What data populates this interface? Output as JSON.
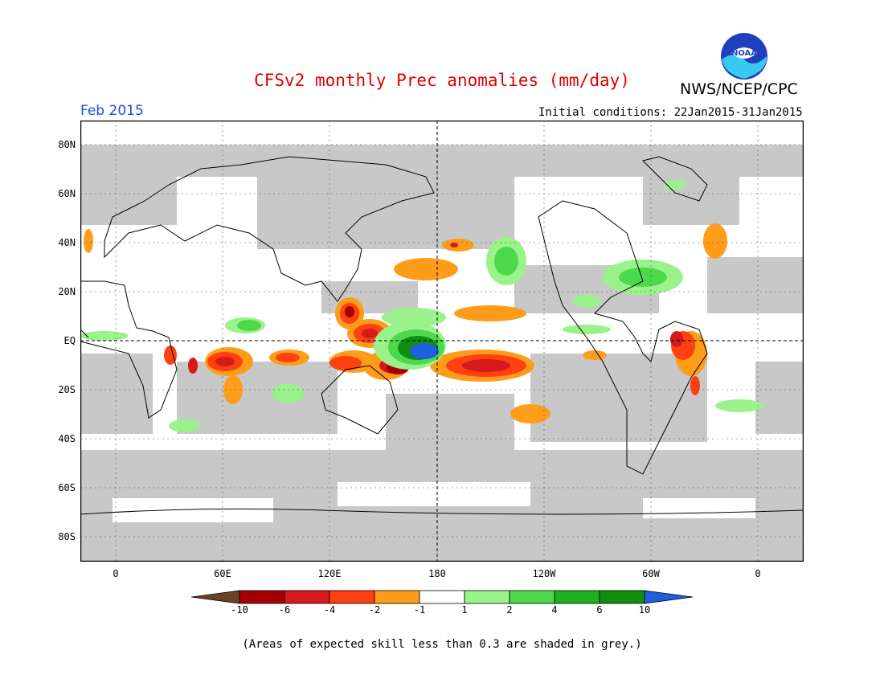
{
  "header": {
    "title": "CFSv2 monthly Prec anomalies (mm/day)",
    "agency": "NWS/NCEP/CPC",
    "logo_text": "NOAA",
    "month": "Feb 2015",
    "initial_conditions": "Initial conditions: 22Jan2015-31Jan2015"
  },
  "axes": {
    "lat_labels": [
      "80N",
      "60N",
      "40N",
      "20N",
      "EQ",
      "20S",
      "40S",
      "60S",
      "80S"
    ],
    "lon_labels": [
      "0",
      "60E",
      "120E",
      "180",
      "120W",
      "60W",
      "0"
    ]
  },
  "colorbar": {
    "labels": [
      "-10",
      "-6",
      "-4",
      "-2",
      "-1",
      "1",
      "2",
      "4",
      "6",
      "10"
    ],
    "colors": [
      "#6b4226",
      "#a50000",
      "#d7191c",
      "#ff4010",
      "#ff9c1a",
      "#ffffff",
      "#9af28a",
      "#4cd94c",
      "#1faf1f",
      "#0f8f0f",
      "#1f5fe0"
    ]
  },
  "legend": {
    "skill_note": "(Areas of expected skill less than 0.3 are shaded in grey.)"
  },
  "colors": {
    "title": "#e00000",
    "month": "#1a50e0",
    "skill_grey": "#c8c8c8"
  }
}
